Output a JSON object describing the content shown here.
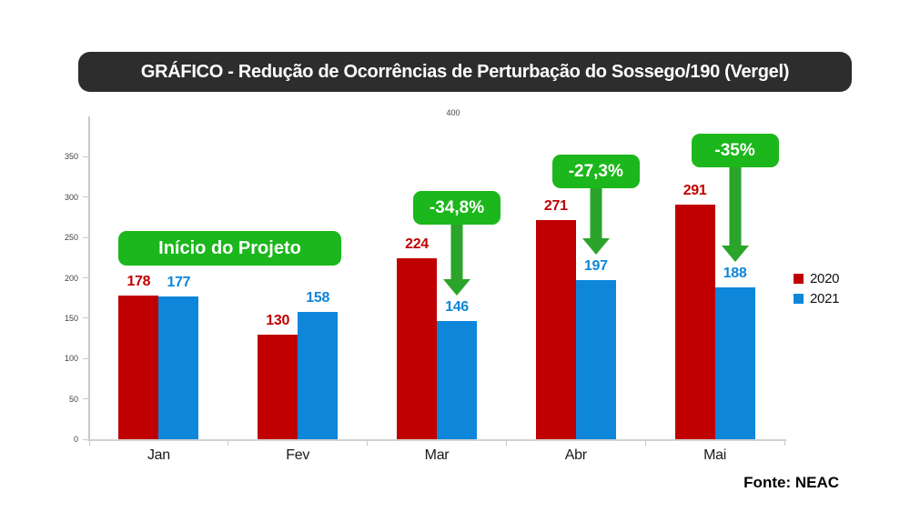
{
  "title": "GRÁFICO - Redução de Ocorrências de Perturbação do Sossego/190 (Vergel)",
  "source": "Fonte: NEAC",
  "colors": {
    "series_2020": "#C00000",
    "series_2021": "#0E86DA",
    "annotation_green": "#1CB71C",
    "arrow_green": "#2AA42A",
    "title_bg": "#2D2D2D",
    "axis_gray": "#C9C9C9"
  },
  "chart_data": {
    "type": "bar",
    "categories": [
      "Jan",
      "Fev",
      "Mar",
      "Abr",
      "Mai"
    ],
    "series": [
      {
        "name": "2020",
        "color": "#C00000",
        "values": [
          178,
          130,
          224,
          271,
          291
        ]
      },
      {
        "name": "2021",
        "color": "#0E86DA",
        "values": [
          177,
          158,
          146,
          197,
          188
        ]
      }
    ],
    "ylim": [
      0,
      400
    ],
    "yticks": [
      0,
      50,
      100,
      150,
      200,
      250,
      300,
      350
    ],
    "top_axis_label": "400",
    "grid": false,
    "legend_position": "right",
    "annotations": {
      "project_start_label": "Início do Projeto",
      "callouts": [
        {
          "label": "-34,8%",
          "category": "Mar"
        },
        {
          "label": "-27,3%",
          "category": "Abr"
        },
        {
          "label": "-35%",
          "category": "Mai"
        }
      ]
    }
  }
}
